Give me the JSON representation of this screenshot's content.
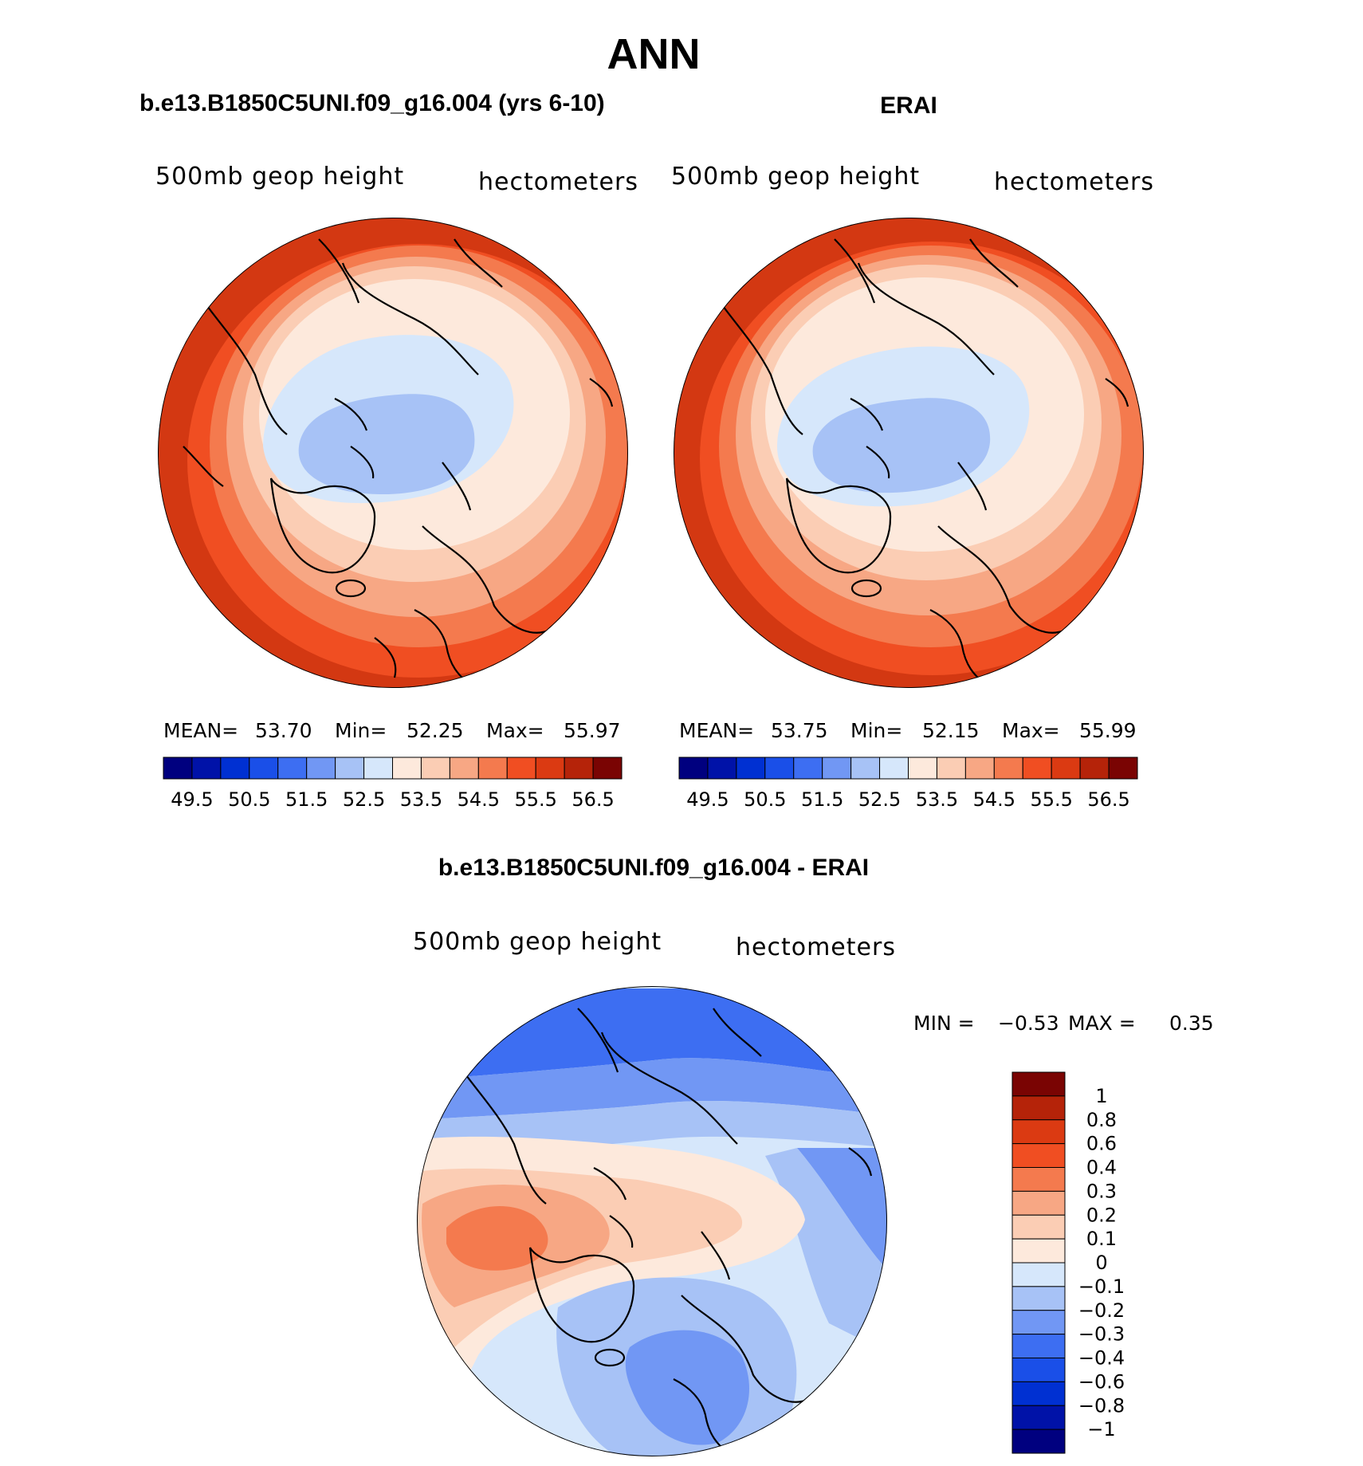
{
  "figure": {
    "title": "ANN",
    "colors": {
      "full_scale": [
        "#00007f",
        "#0012a8",
        "#0030d2",
        "#1a4fe8",
        "#3d6ef2",
        "#7197f4",
        "#a7c2f6",
        "#d6e7fb",
        "#fde9dc",
        "#fbcdb4",
        "#f7a784",
        "#f47a4e",
        "#f04e22",
        "#db3a12",
        "#b52309",
        "#7a0403"
      ],
      "diff_scale": [
        "#00007f",
        "#0012a8",
        "#0030d2",
        "#1a4fe8",
        "#3d6ef2",
        "#7197f4",
        "#a7c2f6",
        "#d6e7fb",
        "#fde9dc",
        "#fbcdb4",
        "#f7a784",
        "#f47a4e",
        "#f04e22",
        "#db3a12",
        "#b52309",
        "#7a0403"
      ]
    }
  },
  "panels": [
    {
      "title": "b.e13.B1850C5UNI.f09_g16.004 (yrs 6-10)",
      "left_label": "500mb geop height",
      "right_label": "hectometers",
      "stats": {
        "mean_label": "MEAN=",
        "mean": "53.70",
        "min_label": "Min=",
        "min": "52.25",
        "max_label": "Max=",
        "max": "55.97"
      },
      "colorbar_ticks": [
        "49.5",
        "50.5",
        "51.5",
        "52.5",
        "53.5",
        "54.5",
        "55.5",
        "56.5"
      ]
    },
    {
      "title": "ERAI",
      "left_label": "500mb geop height",
      "right_label": "hectometers",
      "stats": {
        "mean_label": "MEAN=",
        "mean": "53.75",
        "min_label": "Min=",
        "min": "52.15",
        "max_label": "Max=",
        "max": "55.99"
      },
      "colorbar_ticks": [
        "49.5",
        "50.5",
        "51.5",
        "52.5",
        "53.5",
        "54.5",
        "55.5",
        "56.5"
      ]
    },
    {
      "title": "b.e13.B1850C5UNI.f09_g16.004 - ERAI",
      "left_label": "500mb geop height",
      "right_label": "hectometers",
      "stats": {
        "min_label": "MIN =",
        "min": "−0.53",
        "max_label": "MAX =",
        "max": "0.35"
      },
      "colorbar_ticks": [
        "1",
        "0.8",
        "0.6",
        "0.4",
        "0.3",
        "0.2",
        "0.1",
        "0",
        "−0.1",
        "−0.2",
        "−0.3",
        "−0.4",
        "−0.6",
        "−0.8",
        "−1"
      ]
    }
  ]
}
